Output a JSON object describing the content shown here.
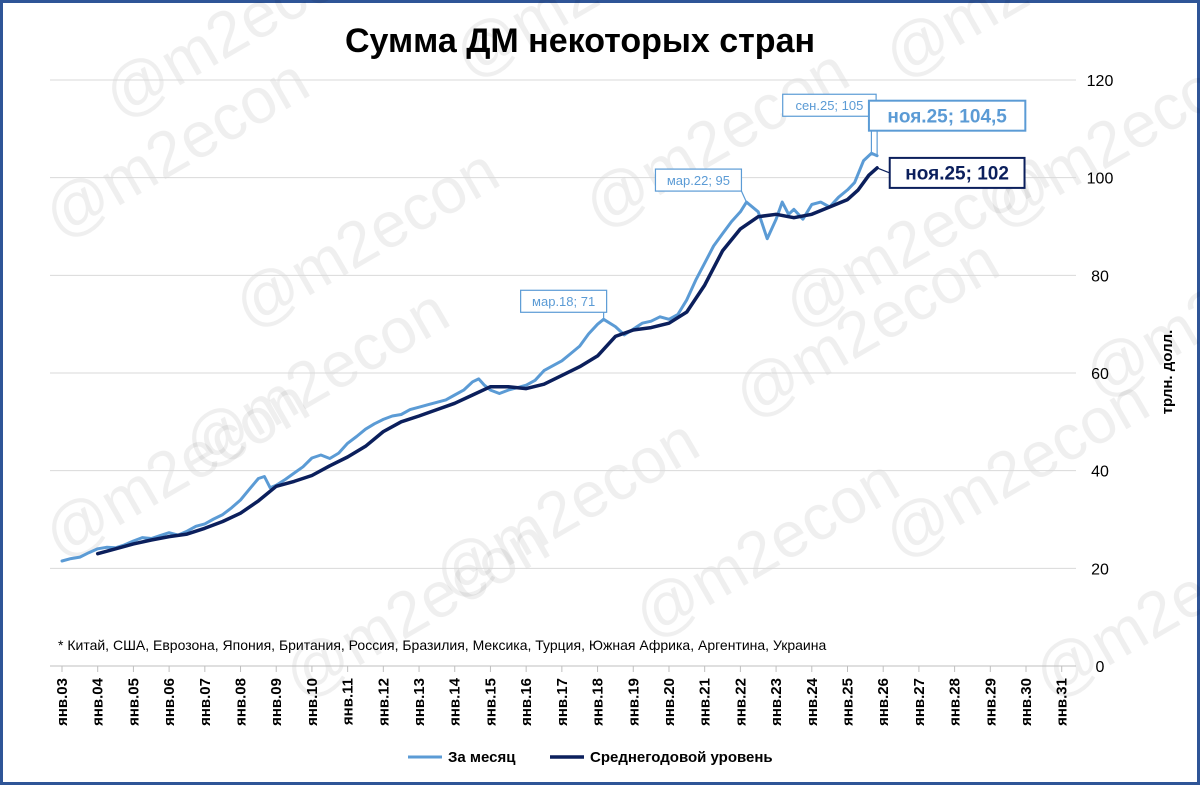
{
  "footnote": "* Китай, США, Еврозона, Япония, Британия, Россия, Бразилия, Мексика, Турция, Южная Африка, Аргентина, Украина",
  "watermark": "@m2econ",
  "chart_data": {
    "type": "line",
    "title": "Сумма ДМ некоторых стран",
    "ylabel": "трлн. долл.",
    "xlabel": "",
    "ylim": [
      0,
      120
    ],
    "yticks": [
      0,
      20,
      40,
      60,
      80,
      100,
      120
    ],
    "y_axis_side": "right",
    "xlim": [
      2003,
      2031.4
    ],
    "xtick_labels": [
      "янв.03",
      "янв.04",
      "янв.05",
      "янв.06",
      "янв.07",
      "янв.08",
      "янв.09",
      "янв.10",
      "янв.11",
      "янв.12",
      "янв.13",
      "янв.14",
      "янв.15",
      "янв.16",
      "янв.17",
      "янв.18",
      "янв.19",
      "янв.20",
      "янв.21",
      "янв.22",
      "янв.23",
      "янв.24",
      "янв.25",
      "янв.26",
      "янв.27",
      "янв.28",
      "янв.29",
      "янв.30",
      "янв.31"
    ],
    "grid": true,
    "legend_position": "bottom",
    "colors": {
      "monthly": "#5b9bd5",
      "annual": "#0b1f5c",
      "axis_text": "#000000",
      "grid": "#d9d9d9",
      "frame": "#2f5597"
    },
    "series": [
      {
        "name": "За месяц",
        "color": "#5b9bd5",
        "points": [
          [
            2003.0,
            21.5
          ],
          [
            2003.25,
            22.0
          ],
          [
            2003.5,
            22.3
          ],
          [
            2003.75,
            23.2
          ],
          [
            2004.0,
            24.0
          ],
          [
            2004.25,
            24.3
          ],
          [
            2004.5,
            24.2
          ],
          [
            2004.75,
            24.8
          ],
          [
            2005.0,
            25.6
          ],
          [
            2005.25,
            26.3
          ],
          [
            2005.5,
            26.1
          ],
          [
            2005.75,
            26.7
          ],
          [
            2006.0,
            27.3
          ],
          [
            2006.25,
            26.8
          ],
          [
            2006.5,
            27.6
          ],
          [
            2006.75,
            28.6
          ],
          [
            2007.0,
            29.1
          ],
          [
            2007.25,
            30.1
          ],
          [
            2007.5,
            31.0
          ],
          [
            2007.75,
            32.4
          ],
          [
            2008.0,
            34.0
          ],
          [
            2008.25,
            36.2
          ],
          [
            2008.5,
            38.4
          ],
          [
            2008.67,
            38.8
          ],
          [
            2008.83,
            36.5
          ],
          [
            2009.0,
            37.0
          ],
          [
            2009.25,
            38.2
          ],
          [
            2009.5,
            39.5
          ],
          [
            2009.75,
            40.8
          ],
          [
            2010.0,
            42.6
          ],
          [
            2010.25,
            43.2
          ],
          [
            2010.5,
            42.5
          ],
          [
            2010.75,
            43.6
          ],
          [
            2011.0,
            45.6
          ],
          [
            2011.25,
            47.0
          ],
          [
            2011.5,
            48.5
          ],
          [
            2011.75,
            49.6
          ],
          [
            2012.0,
            50.5
          ],
          [
            2012.25,
            51.2
          ],
          [
            2012.5,
            51.5
          ],
          [
            2012.75,
            52.5
          ],
          [
            2013.0,
            53.0
          ],
          [
            2013.25,
            53.5
          ],
          [
            2013.5,
            54.0
          ],
          [
            2013.75,
            54.5
          ],
          [
            2014.0,
            55.5
          ],
          [
            2014.25,
            56.5
          ],
          [
            2014.5,
            58.2
          ],
          [
            2014.67,
            58.8
          ],
          [
            2014.83,
            57.5
          ],
          [
            2015.0,
            56.5
          ],
          [
            2015.25,
            55.8
          ],
          [
            2015.5,
            56.5
          ],
          [
            2015.75,
            57.0
          ],
          [
            2016.0,
            57.5
          ],
          [
            2016.25,
            58.5
          ],
          [
            2016.5,
            60.5
          ],
          [
            2016.75,
            61.5
          ],
          [
            2017.0,
            62.5
          ],
          [
            2017.25,
            64.0
          ],
          [
            2017.5,
            65.5
          ],
          [
            2017.75,
            68.0
          ],
          [
            2018.0,
            70.0
          ],
          [
            2018.17,
            71.0
          ],
          [
            2018.5,
            69.5
          ],
          [
            2018.75,
            67.8
          ],
          [
            2019.0,
            69.0
          ],
          [
            2019.25,
            70.2
          ],
          [
            2019.5,
            70.6
          ],
          [
            2019.75,
            71.5
          ],
          [
            2020.0,
            71.0
          ],
          [
            2020.25,
            72.0
          ],
          [
            2020.5,
            75.0
          ],
          [
            2020.75,
            79.0
          ],
          [
            2021.0,
            82.5
          ],
          [
            2021.25,
            86.0
          ],
          [
            2021.5,
            88.5
          ],
          [
            2021.75,
            91.0
          ],
          [
            2022.0,
            93.0
          ],
          [
            2022.17,
            95.0
          ],
          [
            2022.5,
            93.0
          ],
          [
            2022.75,
            87.5
          ],
          [
            2023.0,
            91.5
          ],
          [
            2023.17,
            95.0
          ],
          [
            2023.35,
            92.5
          ],
          [
            2023.5,
            93.5
          ],
          [
            2023.75,
            91.5
          ],
          [
            2024.0,
            94.5
          ],
          [
            2024.25,
            95.0
          ],
          [
            2024.5,
            94.0
          ],
          [
            2024.75,
            96.0
          ],
          [
            2025.0,
            97.5
          ],
          [
            2025.2,
            99.0
          ],
          [
            2025.45,
            103.5
          ],
          [
            2025.67,
            105.0
          ],
          [
            2025.83,
            104.5
          ]
        ]
      },
      {
        "name": "Среднегодовой уровень",
        "color": "#0b1f5c",
        "points": [
          [
            2004.0,
            23.0
          ],
          [
            2004.5,
            24.0
          ],
          [
            2005.0,
            25.0
          ],
          [
            2005.5,
            25.8
          ],
          [
            2006.0,
            26.5
          ],
          [
            2006.5,
            27.0
          ],
          [
            2007.0,
            28.2
          ],
          [
            2007.5,
            29.6
          ],
          [
            2008.0,
            31.3
          ],
          [
            2008.5,
            33.8
          ],
          [
            2009.0,
            36.8
          ],
          [
            2009.5,
            37.8
          ],
          [
            2010.0,
            39.0
          ],
          [
            2010.5,
            41.0
          ],
          [
            2011.0,
            42.8
          ],
          [
            2011.5,
            45.0
          ],
          [
            2012.0,
            48.0
          ],
          [
            2012.5,
            50.0
          ],
          [
            2013.0,
            51.2
          ],
          [
            2013.5,
            52.5
          ],
          [
            2014.0,
            53.8
          ],
          [
            2014.5,
            55.5
          ],
          [
            2015.0,
            57.2
          ],
          [
            2015.5,
            57.2
          ],
          [
            2016.0,
            56.8
          ],
          [
            2016.5,
            57.7
          ],
          [
            2017.0,
            59.5
          ],
          [
            2017.5,
            61.3
          ],
          [
            2018.0,
            63.5
          ],
          [
            2018.5,
            67.5
          ],
          [
            2019.0,
            68.8
          ],
          [
            2019.5,
            69.3
          ],
          [
            2020.0,
            70.2
          ],
          [
            2020.5,
            72.5
          ],
          [
            2021.0,
            78.0
          ],
          [
            2021.5,
            85.0
          ],
          [
            2022.0,
            89.5
          ],
          [
            2022.5,
            92.0
          ],
          [
            2023.0,
            92.5
          ],
          [
            2023.5,
            91.8
          ],
          [
            2024.0,
            92.5
          ],
          [
            2024.5,
            94.0
          ],
          [
            2025.0,
            95.5
          ],
          [
            2025.3,
            97.5
          ],
          [
            2025.6,
            100.5
          ],
          [
            2025.83,
            102.0
          ]
        ]
      }
    ],
    "annotations": [
      {
        "series": "За месяц",
        "x": 2018.17,
        "y": 71,
        "text": "мар.18; 71",
        "style": "small"
      },
      {
        "series": "За месяц",
        "x": 2022.17,
        "y": 95,
        "text": "мар.22; 95",
        "style": "small"
      },
      {
        "series": "За месяц",
        "x": 2025.67,
        "y": 105,
        "text": "сен.25; 105",
        "style": "small"
      },
      {
        "series": "За месяц",
        "x": 2025.83,
        "y": 104.5,
        "text": "ноя.25; 104,5",
        "style": "large"
      },
      {
        "series": "Среднегодовой уровень",
        "x": 2025.83,
        "y": 102,
        "text": "ноя.25; 102",
        "style": "large"
      }
    ]
  }
}
